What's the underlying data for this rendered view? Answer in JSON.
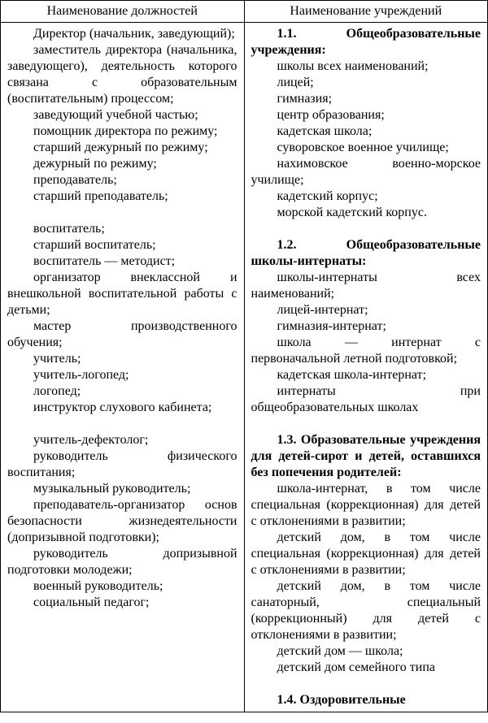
{
  "table": {
    "header_left": "Наименование должностей",
    "header_right": "Наименование учреждений",
    "left": [
      {
        "t": "Директор (начальник, заведующий);"
      },
      {
        "t": "заместитель директора (начальника, заведующего), деятельность которого связана с образовательным (воспитательным) процессом;"
      },
      {
        "t": "заведующий учебной частью;"
      },
      {
        "t": "помощник директора по режиму;"
      },
      {
        "t": "старший дежурный по режиму;"
      },
      {
        "t": "дежурный по режиму;"
      },
      {
        "t": "преподаватель;"
      },
      {
        "t": "старший преподаватель;"
      },
      {
        "blank": true
      },
      {
        "t": "воспитатель;"
      },
      {
        "t": "старший воспитатель;"
      },
      {
        "t": "воспитатель — методист;"
      },
      {
        "t": "организатор внеклассной и внешкольной воспитательной работы с детьми;"
      },
      {
        "t": "мастер производственного обучения;"
      },
      {
        "t": "учитель;"
      },
      {
        "t": "учитель-логопед;"
      },
      {
        "t": "логопед;"
      },
      {
        "t": "инструктор слухового кабинета;"
      },
      {
        "blank": true
      },
      {
        "t": "учитель-дефектолог;"
      },
      {
        "t": "руководитель физического воспитания;"
      },
      {
        "t": "музыкальный руководитель;"
      },
      {
        "t": "преподаватель-организатор основ безопасности жизнедеятельности (допризывной подготовки);"
      },
      {
        "t": "руководитель допризывной подготовки молодежи;"
      },
      {
        "t": "военный руководитель;"
      },
      {
        "t": "социальный педагог;"
      }
    ],
    "right": [
      {
        "t": "1.1. Общеобразовательные учреждения:",
        "bold": true
      },
      {
        "t": "школы всех наименований;"
      },
      {
        "t": "лицей;"
      },
      {
        "t": "гимназия;"
      },
      {
        "t": "центр образования;"
      },
      {
        "t": "кадетская школа;"
      },
      {
        "t": "суворовское военное училище;"
      },
      {
        "t": "нахимовское военно-морское училище;"
      },
      {
        "t": "кадетский корпус;"
      },
      {
        "t": "морской кадетский корпус."
      },
      {
        "blank": true
      },
      {
        "t": "1.2. Общеобразовательные школы-интернаты:",
        "bold": true
      },
      {
        "t": "школы-интернаты всех наименований;"
      },
      {
        "t": "лицей-интернат;"
      },
      {
        "t": "гимназия-интернат;"
      },
      {
        "t": "школа — интернат с первоначальной летной подготовкой;"
      },
      {
        "t": "кадетская школа-интернат;"
      },
      {
        "t": "интернаты при общеобразовательных школах"
      },
      {
        "blank": true
      },
      {
        "t": "1.3. Образовательные учреждения для детей-сирот и детей, оставшихся без попечения родителей:",
        "bold": true
      },
      {
        "t": "школа-интернат, в том числе специальная (коррекционная) для детей с отклонениями в развитии;"
      },
      {
        "t": "детский дом, в том числе специальная (коррекционная) для детей с отклонениями в  развитии;"
      },
      {
        "t": "детский дом, в том числе санаторный, специальный (коррекционный) для детей с отклонениями в развитии;"
      },
      {
        "t": "детский дом — школа;"
      },
      {
        "t": "детский дом семейного типа"
      },
      {
        "blank": true
      },
      {
        "t": "1.4. Оздоровительные",
        "bold": true
      }
    ]
  },
  "style": {
    "font_family": "Times New Roman",
    "font_size_pt": 12,
    "text_color": "#000000",
    "border_color": "#000000",
    "background_color": "#ffffff",
    "col_width_left_pct": 50,
    "col_width_right_pct": 50,
    "text_align": "justify",
    "text_indent_em": 2
  }
}
